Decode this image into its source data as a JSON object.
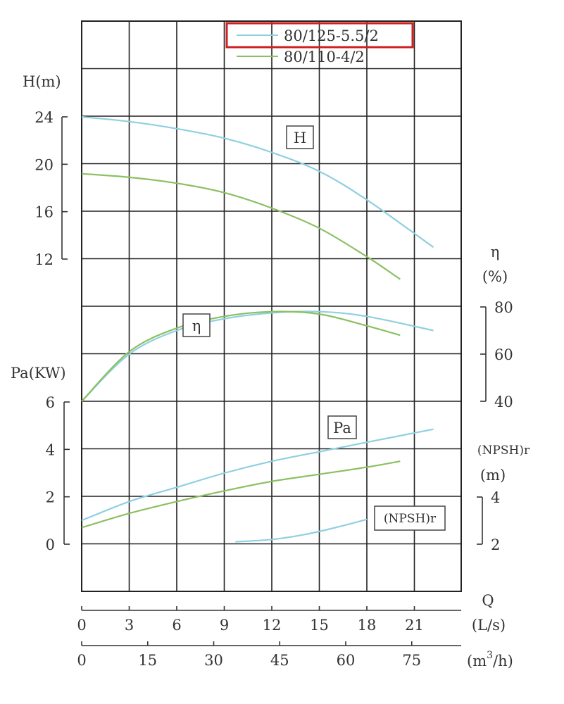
{
  "chart_data": {
    "type": "line",
    "legend": {
      "placement": "top-center",
      "highlighted": "80/125-5.5/2",
      "highlight_color": "#cc2222",
      "entries": [
        {
          "name": "80/125-5.5/2",
          "color": "#8fd0e0"
        },
        {
          "name": "80/110-4/2",
          "color": "#8cc063"
        }
      ]
    },
    "x_axes": {
      "q_symbol": "Q",
      "ls": {
        "label": "(L/s)",
        "ticks": [
          "0",
          "3",
          "6",
          "9",
          "12",
          "15",
          "18",
          "21"
        ],
        "range": [
          0,
          24
        ]
      },
      "m3h": {
        "label_prefix": "(m",
        "label_sup": "3",
        "label_suffix": "/h)",
        "ticks": [
          "0",
          "15",
          "30",
          "45",
          "60",
          "75"
        ]
      }
    },
    "y_axes": {
      "H": {
        "label": "H(m)",
        "ticks": [
          "12",
          "16",
          "20",
          "24"
        ],
        "range": [
          12,
          24
        ]
      },
      "eta": {
        "label_symbol": "η",
        "label_unit": "(%)",
        "ticks": [
          "40",
          "60",
          "80"
        ],
        "range": [
          40,
          80
        ]
      },
      "Pa": {
        "label": "Pa(KW)",
        "ticks": [
          "0",
          "2",
          "4",
          "6"
        ],
        "range": [
          0,
          6
        ]
      },
      "NPSH": {
        "label_top": "(NPSH)r",
        "label_unit": "(m)",
        "ticks": [
          "2",
          "4"
        ],
        "range": [
          2,
          4
        ]
      }
    },
    "curve_tags": {
      "H": "H",
      "eta": "η",
      "Pa": "Pa",
      "NPSH": "(NPSH)r"
    },
    "grid": true,
    "series": [
      {
        "name": "80/125-5.5/2",
        "curve": "H",
        "color": "#8fd0e0",
        "x": [
          0,
          3,
          6,
          9,
          12,
          15,
          18,
          22.2
        ],
        "y": [
          24.0,
          23.6,
          23.0,
          22.2,
          21.0,
          19.4,
          17.0,
          13.0
        ]
      },
      {
        "name": "80/110-4/2",
        "curve": "H",
        "color": "#8cc063",
        "x": [
          0,
          3,
          6,
          9,
          12,
          15,
          18,
          20.1
        ],
        "y": [
          19.2,
          18.9,
          18.4,
          17.6,
          16.3,
          14.6,
          12.2,
          10.3
        ]
      },
      {
        "name": "80/125-5.5/2",
        "curve": "eta",
        "color": "#8fd0e0",
        "x": [
          0,
          3,
          6,
          9,
          12,
          15,
          18,
          22.2
        ],
        "y": [
          40,
          60,
          70,
          75,
          77.5,
          78,
          76,
          70
        ]
      },
      {
        "name": "80/110-4/2",
        "curve": "eta",
        "color": "#8cc063",
        "x": [
          0,
          3,
          6,
          9,
          12,
          15,
          18,
          20.1
        ],
        "y": [
          40,
          61,
          71,
          76,
          78,
          77,
          72,
          68
        ]
      },
      {
        "name": "80/125-5.5/2",
        "curve": "Pa",
        "color": "#8fd0e0",
        "x": [
          0,
          3,
          6,
          9,
          12,
          15,
          18,
          22.2
        ],
        "y": [
          1.0,
          1.8,
          2.4,
          3.0,
          3.5,
          3.9,
          4.3,
          4.85
        ]
      },
      {
        "name": "80/110-4/2",
        "curve": "Pa",
        "color": "#8cc063",
        "x": [
          0,
          3,
          6,
          9,
          12,
          15,
          18,
          20.1
        ],
        "y": [
          0.7,
          1.3,
          1.8,
          2.25,
          2.65,
          2.95,
          3.25,
          3.5
        ]
      },
      {
        "name": "80/125-5.5/2",
        "curve": "NPSH",
        "color": "#8fd0e0",
        "x": [
          9.7,
          12,
          14,
          16,
          18
        ],
        "y": [
          2.1,
          2.2,
          2.4,
          2.7,
          3.05
        ]
      }
    ]
  }
}
